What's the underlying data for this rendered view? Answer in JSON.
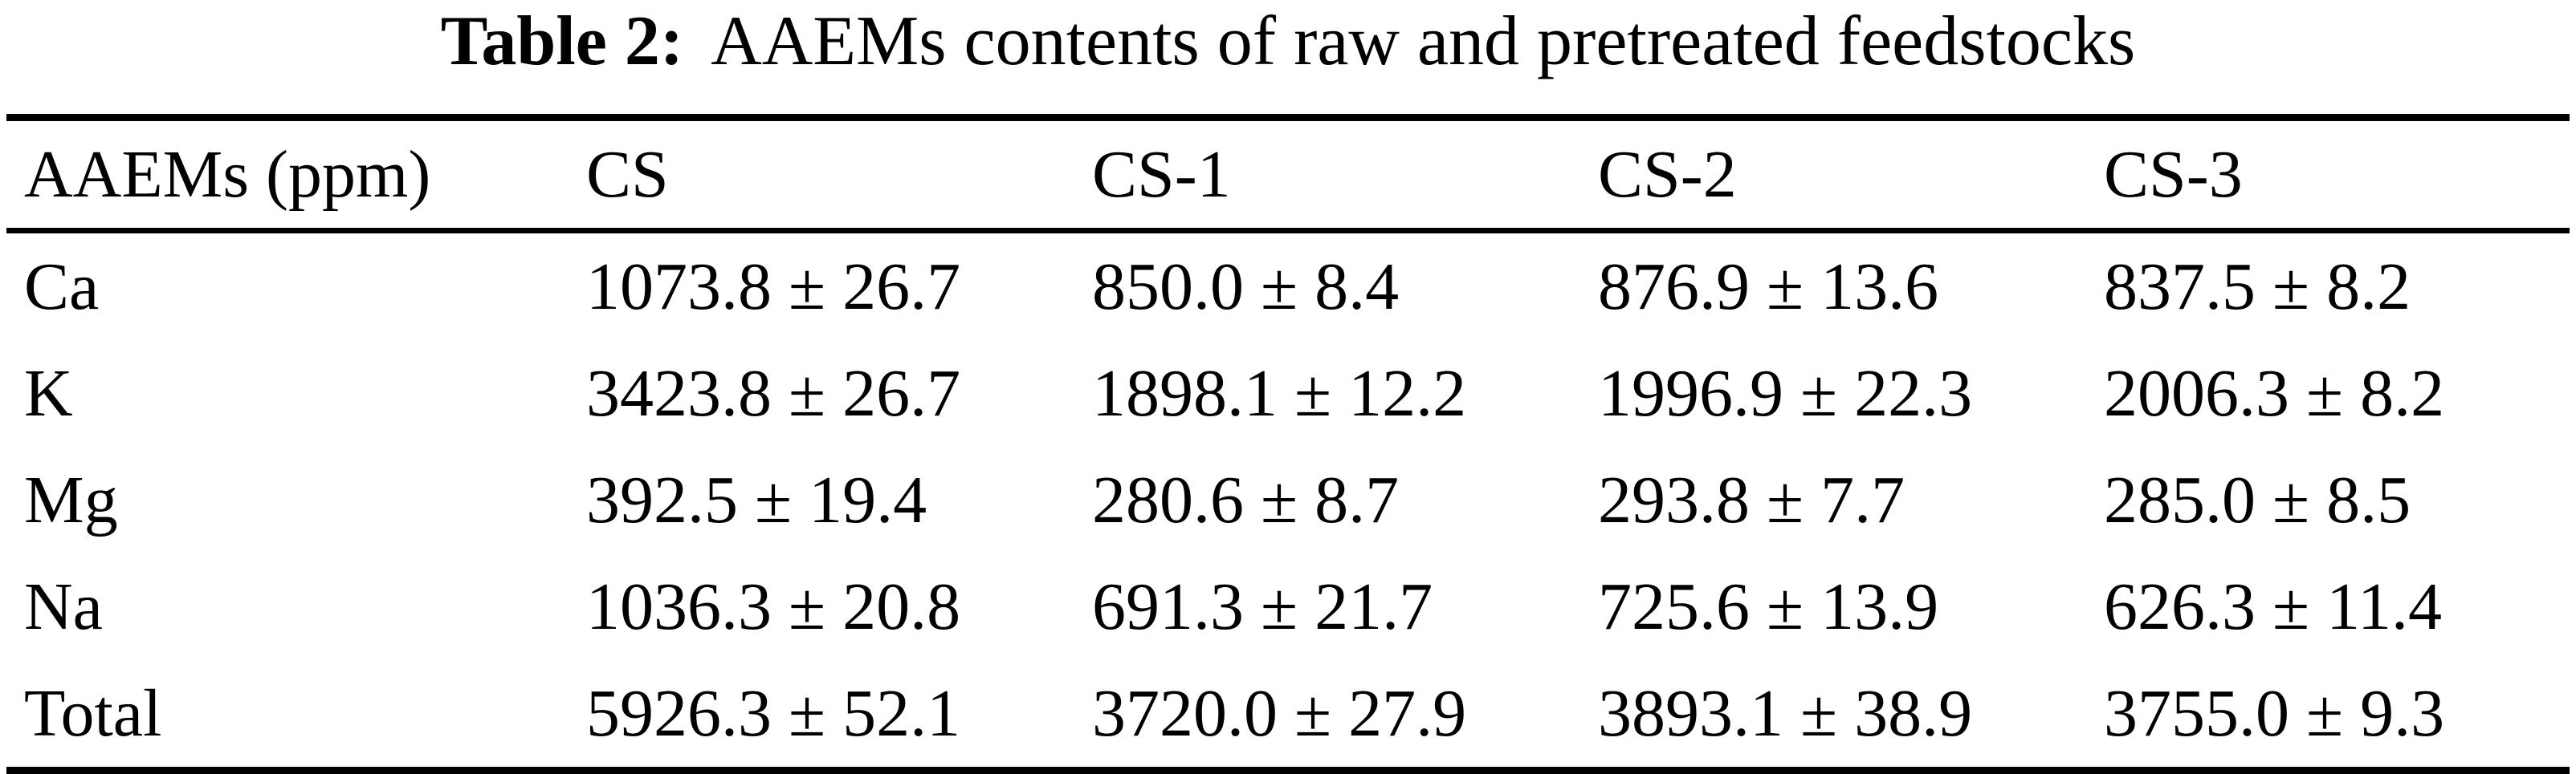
{
  "caption": {
    "label": "Table 2:",
    "text": "AAEMs contents of raw and pretreated feedstocks"
  },
  "table": {
    "columns": [
      "AAEMs (ppm)",
      "CS",
      "CS-1",
      "CS-2",
      "CS-3"
    ],
    "rows": [
      {
        "element": "Ca",
        "values": [
          "1073.8 ± 26.7",
          "850.0 ± 8.4",
          "876.9 ± 13.6",
          "837.5 ± 8.2"
        ]
      },
      {
        "element": "K",
        "values": [
          "3423.8 ± 26.7",
          "1898.1 ± 12.2",
          "1996.9 ± 22.3",
          "2006.3 ± 8.2"
        ]
      },
      {
        "element": "Mg",
        "values": [
          "392.5 ± 19.4",
          "280.6 ± 8.7",
          "293.8 ± 7.7",
          "285.0 ± 8.5"
        ]
      },
      {
        "element": "Na",
        "values": [
          "1036.3 ± 20.8",
          "691.3 ± 21.7",
          "725.6 ± 13.9",
          "626.3 ± 11.4"
        ]
      },
      {
        "element": "Total",
        "values": [
          "5926.3 ± 52.1",
          "3720.0 ± 27.9",
          "3893.1 ± 38.9",
          "3755.0 ± 9.3"
        ]
      }
    ]
  },
  "chart_data": {
    "type": "table",
    "title": "Table 2: AAEMs contents of raw and pretreated feedstocks",
    "unit": "ppm",
    "categories": [
      "CS",
      "CS-1",
      "CS-2",
      "CS-3"
    ],
    "series": [
      {
        "name": "Ca",
        "means": [
          1073.8,
          850.0,
          876.9,
          837.5
        ],
        "sd": [
          26.7,
          8.4,
          13.6,
          8.2
        ]
      },
      {
        "name": "K",
        "means": [
          3423.8,
          1898.1,
          1996.9,
          2006.3
        ],
        "sd": [
          26.7,
          12.2,
          22.3,
          8.2
        ]
      },
      {
        "name": "Mg",
        "means": [
          392.5,
          280.6,
          293.8,
          285.0
        ],
        "sd": [
          19.4,
          8.7,
          7.7,
          8.5
        ]
      },
      {
        "name": "Na",
        "means": [
          1036.3,
          691.3,
          725.6,
          626.3
        ],
        "sd": [
          20.8,
          21.7,
          13.9,
          11.4
        ]
      },
      {
        "name": "Total",
        "means": [
          5926.3,
          3720.0,
          3893.1,
          3755.0
        ],
        "sd": [
          52.1,
          27.9,
          38.9,
          9.3
        ]
      }
    ]
  }
}
